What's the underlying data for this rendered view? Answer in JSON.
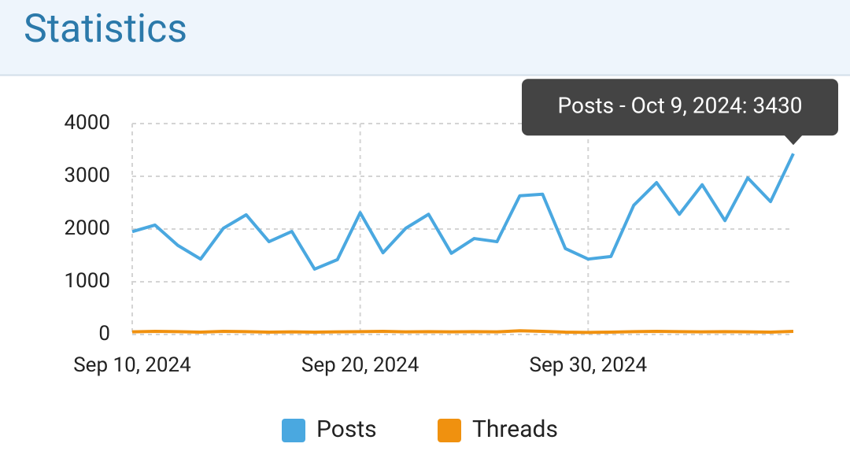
{
  "chart_data": {
    "type": "line",
    "title": "Statistics",
    "x": [
      "2024-09-10",
      "2024-09-11",
      "2024-09-12",
      "2024-09-13",
      "2024-09-14",
      "2024-09-15",
      "2024-09-16",
      "2024-09-17",
      "2024-09-18",
      "2024-09-19",
      "2024-09-20",
      "2024-09-21",
      "2024-09-22",
      "2024-09-23",
      "2024-09-24",
      "2024-09-25",
      "2024-09-26",
      "2024-09-27",
      "2024-09-28",
      "2024-09-29",
      "2024-09-30",
      "2024-10-01",
      "2024-10-02",
      "2024-10-03",
      "2024-10-04",
      "2024-10-05",
      "2024-10-06",
      "2024-10-07",
      "2024-10-08",
      "2024-10-09"
    ],
    "xlim": [
      "2024-09-10",
      "2024-10-09"
    ],
    "xticks": [
      {
        "value": "2024-09-10",
        "label": "Sep 10, 2024"
      },
      {
        "value": "2024-09-20",
        "label": "Sep 20, 2024"
      },
      {
        "value": "2024-09-30",
        "label": "Sep 30, 2024"
      }
    ],
    "ylim": [
      0,
      4000
    ],
    "yticks": [
      0,
      1000,
      2000,
      3000,
      4000
    ],
    "grid": true,
    "series": [
      {
        "name": "Posts",
        "color": "#4aa8e0",
        "values": [
          1950,
          2075,
          1690,
          1430,
          2015,
          2270,
          1760,
          1955,
          1240,
          1420,
          2310,
          1550,
          2015,
          2280,
          1540,
          1820,
          1760,
          2630,
          2660,
          1630,
          1430,
          1480,
          2450,
          2880,
          2280,
          2840,
          2160,
          2970,
          2520,
          3430
        ]
      },
      {
        "name": "Threads",
        "color": "#f0910f",
        "values": [
          50,
          60,
          55,
          45,
          60,
          55,
          45,
          50,
          45,
          50,
          55,
          60,
          50,
          55,
          50,
          55,
          50,
          70,
          60,
          45,
          40,
          45,
          55,
          60,
          55,
          50,
          55,
          50,
          45,
          60
        ]
      }
    ],
    "tooltip": "Posts - Oct 9, 2024: 3430",
    "legend": "bottom"
  }
}
